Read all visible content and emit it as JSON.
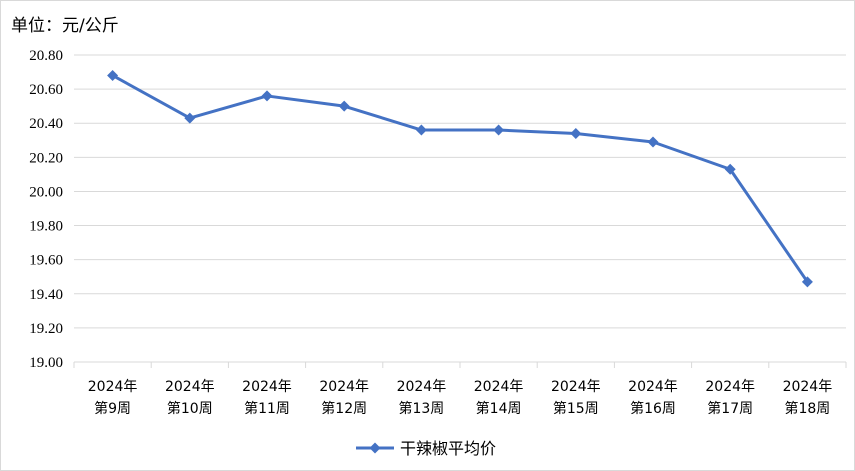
{
  "unit_label": "单位：元/公斤",
  "chart_data": {
    "type": "line",
    "title": "",
    "xlabel": "",
    "ylabel": "",
    "ylim": [
      19.0,
      20.8
    ],
    "ytick_step": 0.2,
    "ytick_labels": [
      "19.00",
      "19.20",
      "19.40",
      "19.60",
      "19.80",
      "20.00",
      "20.20",
      "20.40",
      "20.60",
      "20.80"
    ],
    "grid": true,
    "legend": "bottom",
    "categories": [
      {
        "year": "2024年",
        "week": "第9周"
      },
      {
        "year": "2024年",
        "week": "第10周"
      },
      {
        "year": "2024年",
        "week": "第11周"
      },
      {
        "year": "2024年",
        "week": "第12周"
      },
      {
        "year": "2024年",
        "week": "第13周"
      },
      {
        "year": "2024年",
        "week": "第14周"
      },
      {
        "year": "2024年",
        "week": "第15周"
      },
      {
        "year": "2024年",
        "week": "第16周"
      },
      {
        "year": "2024年",
        "week": "第17周"
      },
      {
        "year": "2024年",
        "week": "第18周"
      }
    ],
    "series": [
      {
        "name": "干辣椒平均价",
        "color": "#4472C4",
        "marker": "diamond",
        "values": [
          20.68,
          20.43,
          20.56,
          20.5,
          20.36,
          20.36,
          20.34,
          20.29,
          20.13,
          19.47
        ]
      }
    ]
  }
}
